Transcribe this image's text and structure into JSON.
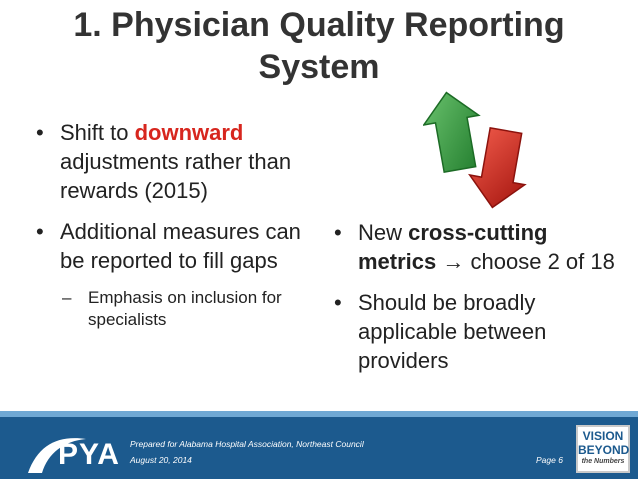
{
  "title": {
    "line1": "1. Physician Quality Reporting",
    "line2": "System"
  },
  "left_bullets": {
    "b1": {
      "pre": "Shift to ",
      "em": "downward",
      "post": " adjustments rather than rewards (2015)"
    },
    "b2": {
      "text": "Additional measures can be reported to fill gaps"
    },
    "sub1": {
      "text": "Emphasis on inclusion for specialists"
    }
  },
  "right_bullets": {
    "b1": {
      "pre": "New ",
      "em": "cross-cutting metrics",
      "arrow": " → ",
      "post": "choose 2 of 18"
    },
    "b2": {
      "text": "Should be broadly applicable between providers"
    }
  },
  "glyphs": {
    "bullet": "•",
    "dash": "–"
  },
  "icons": {
    "up": "green-up-arrow-icon",
    "down": "red-down-arrow-icon"
  },
  "colors": {
    "accent_red": "#d7261e",
    "arrow_green": "#2e8b3a",
    "arrow_red": "#d7261e",
    "footer_blue": "#1c5a8e"
  },
  "footer": {
    "logo": "PYA",
    "prepared": "Prepared for Alabama Hospital Association, Northeast Council",
    "date": "August 20, 2014",
    "page": "Page 6",
    "vision_line1": "VISION",
    "vision_line2": "BEYOND",
    "vision_line3": "the Numbers"
  }
}
